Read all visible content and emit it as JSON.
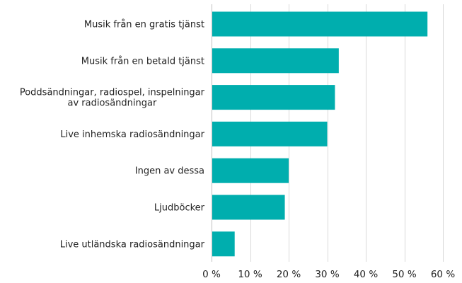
{
  "chart_data": {
    "type": "bar",
    "orientation": "horizontal",
    "categories": [
      [
        "Musik från en gratis tjänst"
      ],
      [
        "Musik från en betald tjänst"
      ],
      [
        "Poddsändningar, radiospel, inspelningar",
        "av radiosändningar"
      ],
      [
        "Live inhemska radiosändningar"
      ],
      [
        "Ingen av dessa"
      ],
      [
        "Ljudböcker"
      ],
      [
        "Live utländska radiosändningar"
      ]
    ],
    "values": [
      56,
      33,
      32,
      30,
      20,
      19,
      6
    ],
    "xlim": [
      0,
      60
    ],
    "xticks": [
      0,
      10,
      20,
      30,
      40,
      50,
      60
    ],
    "xtick_labels": [
      "0 %",
      "10 %",
      "20 %",
      "30 %",
      "40 %",
      "50 %",
      "60 %"
    ],
    "unit": "%",
    "grid": "vertical",
    "bar_color": "#00AEAE"
  }
}
